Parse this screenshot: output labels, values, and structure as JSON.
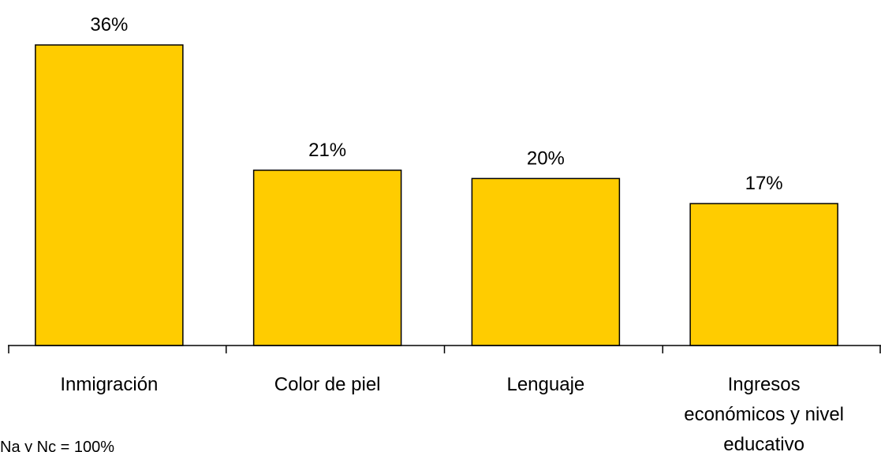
{
  "chart_data": {
    "type": "bar",
    "categories": [
      [
        "Inmigración"
      ],
      [
        "Color de piel"
      ],
      [
        "Lenguaje"
      ],
      [
        "Ingresos",
        "económicos y nivel",
        "educativo"
      ]
    ],
    "values": [
      36,
      21,
      20,
      17
    ],
    "value_labels": [
      "36%",
      "21%",
      "20%",
      "17%"
    ],
    "ylim": [
      0,
      36
    ],
    "grid": false,
    "bar_color": "#FFCC00",
    "bar_edge_color": "#000000"
  },
  "footnote": "Na y Nc = 100%"
}
